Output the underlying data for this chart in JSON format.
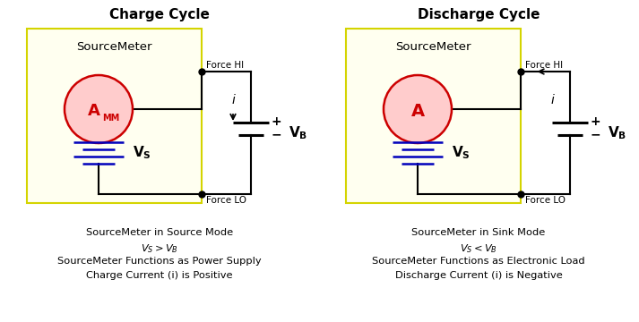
{
  "title_left": "Charge Cycle",
  "title_right": "Discharge Cycle",
  "box_bg": "#fffff0",
  "box_border": "#d4d400",
  "ammeter_face": "#ffcccc",
  "ammeter_border": "#cc0000",
  "ammeter_text": "#cc0000",
  "battery_color": "#0000bb",
  "wire_color": "#000000",
  "caption_left_1": "SourceMeter in Source Mode",
  "caption_left_2": "$V_S > V_B$",
  "caption_left_3": "SourceMeter Functions as Power Supply",
  "caption_left_4": "Charge Current (i) is Positive",
  "caption_right_1": "SourceMeter in Sink Mode",
  "caption_right_2": "$V_S < V_B$",
  "caption_right_3": "SourceMeter Functions as Electronic Load",
  "caption_right_4": "Discharge Current (i) is Negative"
}
